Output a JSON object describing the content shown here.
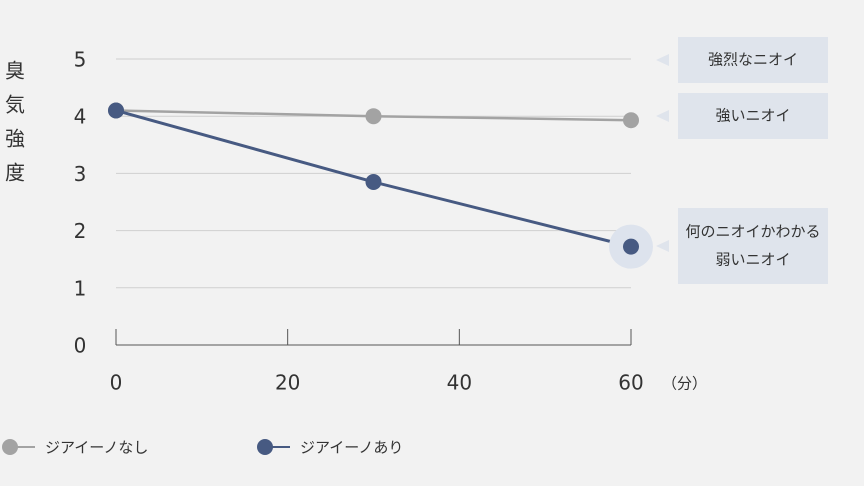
{
  "chart_data": {
    "type": "line",
    "y_label": "臭気強度",
    "x_unit": "（分）",
    "x": [
      0,
      30,
      60
    ],
    "xlim": [
      0,
      60
    ],
    "xticks": [
      0,
      20,
      40,
      60
    ],
    "ylim": [
      0,
      5
    ],
    "yticks": [
      0,
      1,
      2,
      3,
      4,
      5
    ],
    "grid": true,
    "legend": "bottom",
    "series": [
      {
        "name": "ジアイーノなし",
        "color": "#a3a3a3",
        "values": [
          4.1,
          4.0,
          3.93
        ]
      },
      {
        "name": "ジアイーノあり",
        "color": "#475a82",
        "values": [
          4.1,
          2.85,
          1.72
        ]
      }
    ],
    "annotations": [
      [
        "強烈なニオイ"
      ],
      [
        "強いニオイ"
      ],
      [
        "何のニオイかわかる",
        "弱いニオイ"
      ]
    ]
  }
}
